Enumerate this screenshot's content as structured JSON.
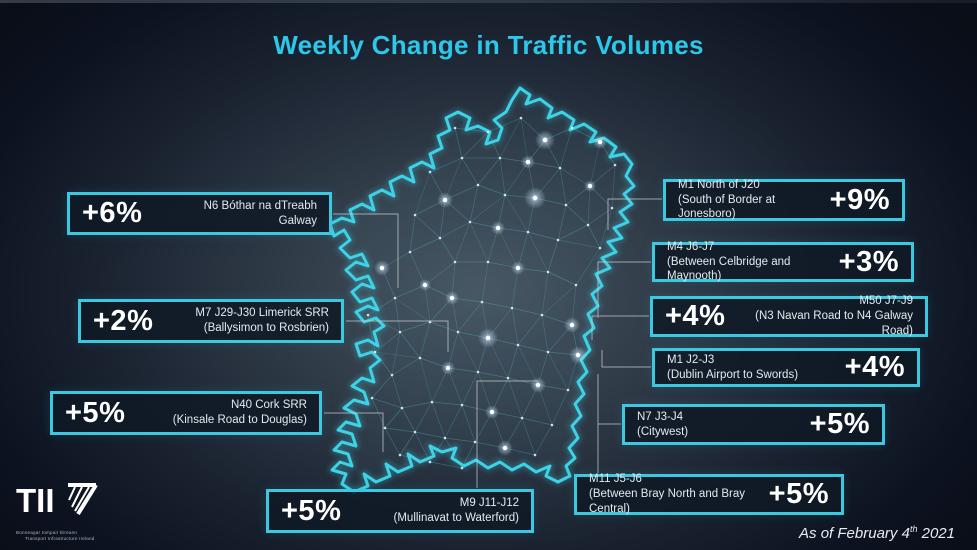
{
  "title": "Weekly Change in Traffic Volumes",
  "callouts": [
    {
      "percent": "+6%",
      "line1": "N6 Bóthar na dTreabh",
      "line2": "Galway"
    },
    {
      "percent": "+2%",
      "line1": "M7 J29-J30 Limerick SRR",
      "line2": "(Ballysimon to Rosbrien)"
    },
    {
      "percent": "+5%",
      "line1": "N40 Cork SRR",
      "line2": "(Kinsale Road to Douglas)"
    },
    {
      "percent": "+5%",
      "line1": "M9 J11-J12",
      "line2": "(Mullinavat to Waterford)"
    },
    {
      "percent": "+9%",
      "line1": "M1 North of J20",
      "line2": "(South of Border at Jonesboro)"
    },
    {
      "percent": "+3%",
      "line1": "M4 J6-J7",
      "line2": "(Between Celbridge and Maynooth)"
    },
    {
      "percent": "+4%",
      "line1": "M50 J7-J9",
      "line2": "(N3 Navan Road to N4 Galway Road)"
    },
    {
      "percent": "+4%",
      "line1": "M1 J2-J3",
      "line2": "(Dublin Airport to Swords)"
    },
    {
      "percent": "+5%",
      "line1": "N7 J3-J4",
      "line2": "(Citywest)"
    },
    {
      "percent": "+5%",
      "line1": "M11 J5-J6",
      "line2": "(Between Bray North and Bray Central)"
    }
  ],
  "footer": {
    "text": "As of February 4",
    "superscript": "th",
    "year": " 2021"
  },
  "logo": {
    "abbr": "TII",
    "line1": "Bonneagar Iompair Éireann",
    "line2": "Transport Infrastructure Ireland"
  },
  "colors": {
    "accent_cyan": "#3CC8DE",
    "title_cyan": "#2DC7E9",
    "coast_cyan": "#3DD2E6",
    "percent_text": "#FFFFFF",
    "description_text": "#E3EAEF",
    "background_dark": "#0C1220",
    "connector_gray": "#C7CED4"
  }
}
